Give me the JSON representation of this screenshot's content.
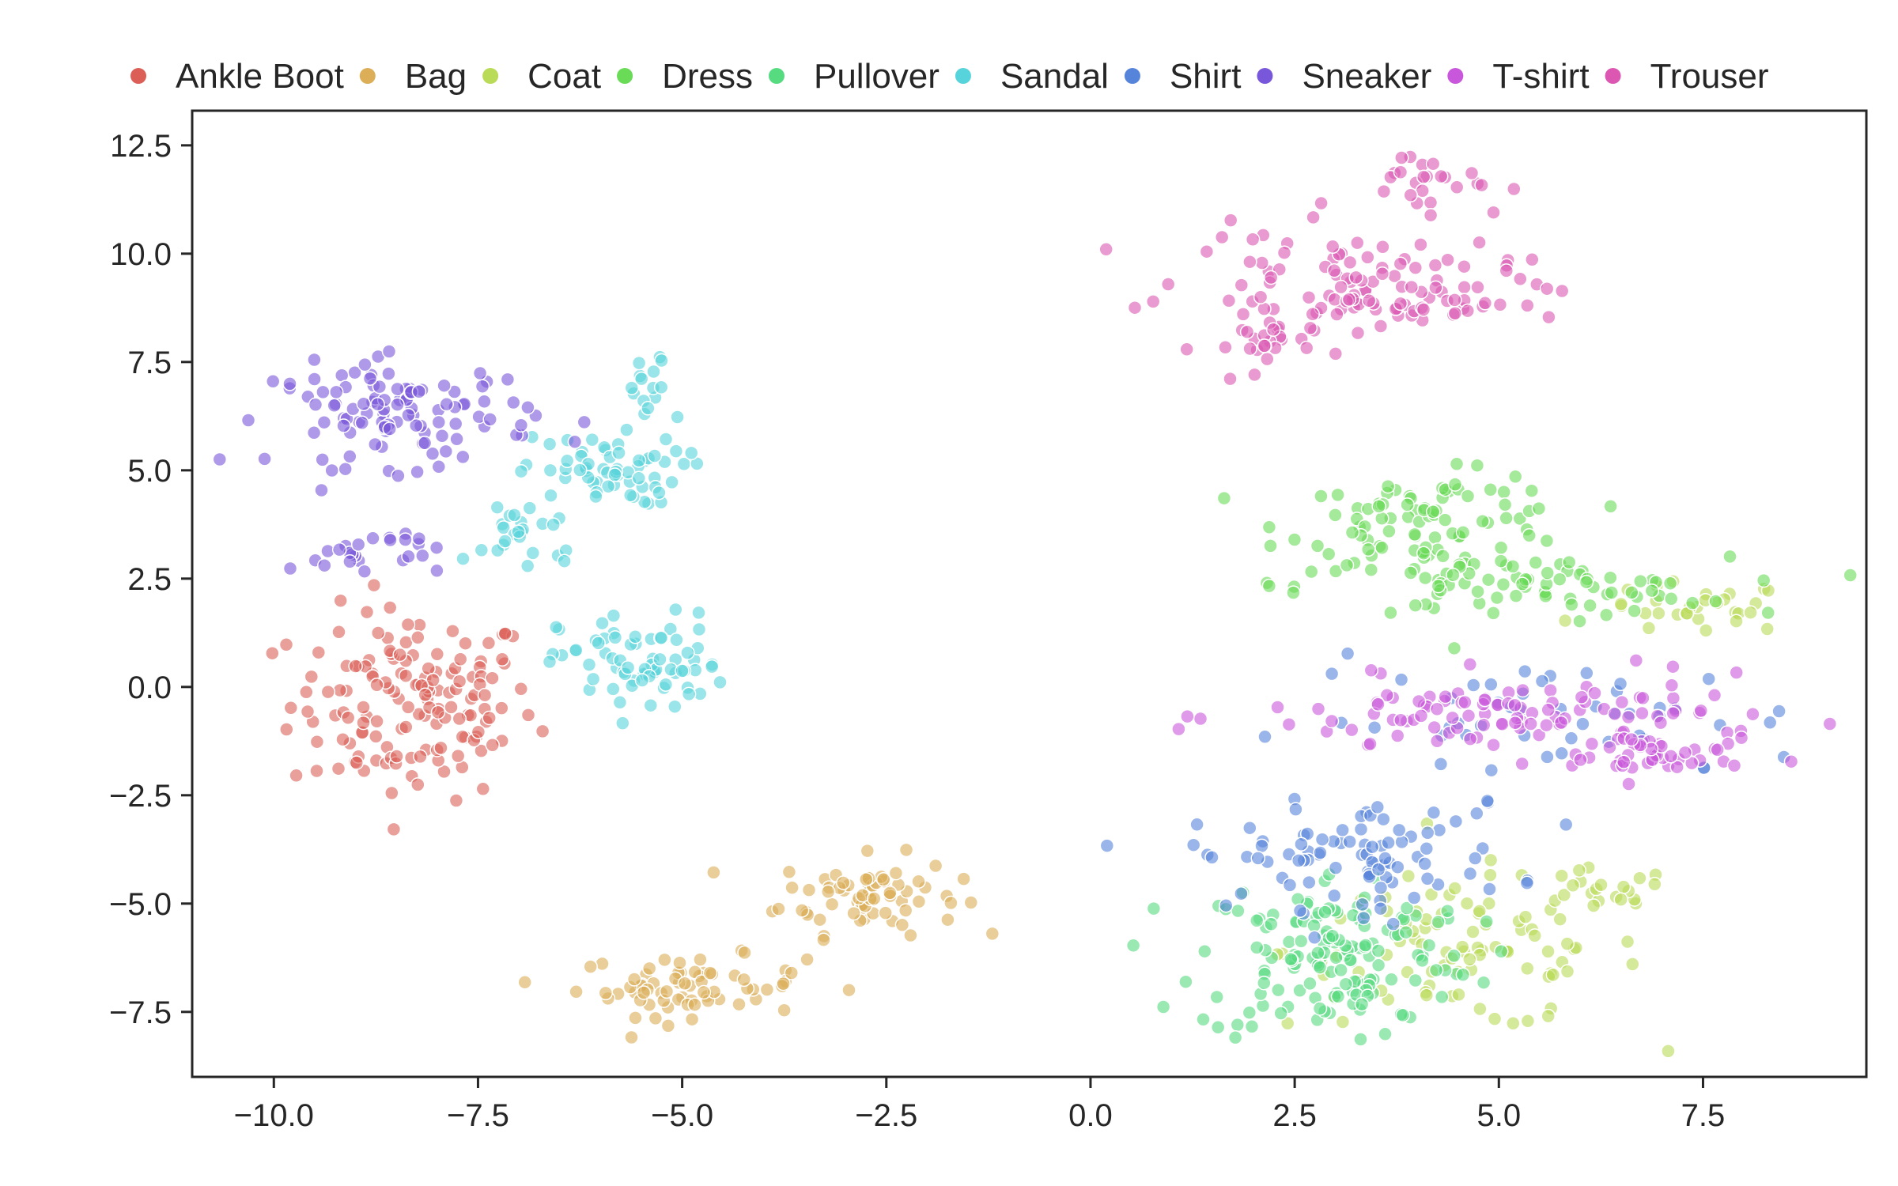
{
  "chart_data": {
    "type": "scatter",
    "title": "",
    "xlabel": "",
    "ylabel": "",
    "xlim": [
      -11,
      9.5
    ],
    "ylim": [
      -9,
      13.3
    ],
    "xticks": [
      -10.0,
      -7.5,
      -5.0,
      -2.5,
      0.0,
      2.5,
      5.0,
      7.5
    ],
    "yticks": [
      -7.5,
      -5.0,
      -2.5,
      0.0,
      2.5,
      5.0,
      7.5,
      10.0,
      12.5
    ],
    "xtick_labels": [
      "−10.0",
      "−7.5",
      "−5.0",
      "−2.5",
      "0.0",
      "2.5",
      "5.0",
      "7.5"
    ],
    "ytick_labels": [
      "−7.5",
      "−5.0",
      "−2.5",
      "0.0",
      "2.5",
      "5.0",
      "7.5",
      "10.0",
      "12.5"
    ],
    "legend_position": "top",
    "grid": false,
    "series": [
      {
        "name": "Ankle Boot",
        "color": "#db5f57",
        "clusters": [
          {
            "cx": -8.3,
            "cy": -0.4,
            "sx": 0.75,
            "sy": 1.1,
            "n": 150
          }
        ]
      },
      {
        "name": "Bag",
        "color": "#dbae57",
        "clusters": [
          {
            "cx": -2.7,
            "cy": -4.8,
            "sx": 0.55,
            "sy": 0.45,
            "n": 70
          },
          {
            "cx": -4.9,
            "cy": -6.9,
            "sx": 0.7,
            "sy": 0.35,
            "n": 70
          }
        ]
      },
      {
        "name": "Coat",
        "color": "#b9db57",
        "clusters": [
          {
            "cx": 4.6,
            "cy": -6.1,
            "sx": 1.1,
            "sy": 0.9,
            "n": 90
          },
          {
            "cx": 6.2,
            "cy": -4.8,
            "sx": 0.45,
            "sy": 0.3,
            "n": 20
          },
          {
            "cx": 7.4,
            "cy": 1.8,
            "sx": 0.6,
            "sy": 0.3,
            "n": 30
          }
        ]
      },
      {
        "name": "Dress",
        "color": "#69db57",
        "clusters": [
          {
            "cx": 4.2,
            "cy": 3.8,
            "sx": 0.9,
            "sy": 0.55,
            "n": 90
          },
          {
            "cx": 5.2,
            "cy": 2.3,
            "sx": 1.3,
            "sy": 0.35,
            "n": 80
          }
        ]
      },
      {
        "name": "Pullover",
        "color": "#57db80",
        "clusters": [
          {
            "cx": 3.0,
            "cy": -6.2,
            "sx": 0.85,
            "sy": 1.0,
            "n": 150
          }
        ]
      },
      {
        "name": "Sandal",
        "color": "#57d3db",
        "clusters": [
          {
            "cx": -6.0,
            "cy": 5.0,
            "sx": 0.5,
            "sy": 0.4,
            "n": 60
          },
          {
            "cx": -5.5,
            "cy": 0.5,
            "sx": 0.5,
            "sy": 0.6,
            "n": 70
          },
          {
            "cx": -5.4,
            "cy": 6.7,
            "sx": 0.15,
            "sy": 0.5,
            "n": 15
          },
          {
            "cx": -6.9,
            "cy": 3.6,
            "sx": 0.35,
            "sy": 0.5,
            "n": 25
          }
        ]
      },
      {
        "name": "Shirt",
        "color": "#5784db",
        "clusters": [
          {
            "cx": 3.2,
            "cy": -3.9,
            "sx": 1.0,
            "sy": 0.6,
            "n": 90
          },
          {
            "cx": 5.7,
            "cy": -0.8,
            "sx": 1.6,
            "sy": 0.7,
            "n": 50
          }
        ]
      },
      {
        "name": "Sneaker",
        "color": "#7957db",
        "clusters": [
          {
            "cx": -8.4,
            "cy": 6.3,
            "sx": 0.8,
            "sy": 0.6,
            "n": 110
          },
          {
            "cx": -8.9,
            "cy": 3.1,
            "sx": 0.45,
            "sy": 0.3,
            "n": 25
          }
        ]
      },
      {
        "name": "T-shirt",
        "color": "#c957db",
        "clusters": [
          {
            "cx": 5.3,
            "cy": -0.7,
            "sx": 1.6,
            "sy": 0.45,
            "n": 110
          },
          {
            "cx": 6.8,
            "cy": -1.6,
            "sx": 0.6,
            "sy": 0.3,
            "n": 40
          }
        ]
      },
      {
        "name": "Trouser",
        "color": "#db57b2",
        "clusters": [
          {
            "cx": 3.2,
            "cy": 9.4,
            "sx": 1.0,
            "sy": 0.55,
            "n": 90
          },
          {
            "cx": 4.3,
            "cy": 8.9,
            "sx": 0.7,
            "sy": 0.2,
            "n": 25
          },
          {
            "cx": 4.1,
            "cy": 11.7,
            "sx": 0.5,
            "sy": 0.35,
            "n": 25
          },
          {
            "cx": 2.0,
            "cy": 7.8,
            "sx": 0.35,
            "sy": 0.4,
            "n": 25
          }
        ]
      }
    ]
  }
}
